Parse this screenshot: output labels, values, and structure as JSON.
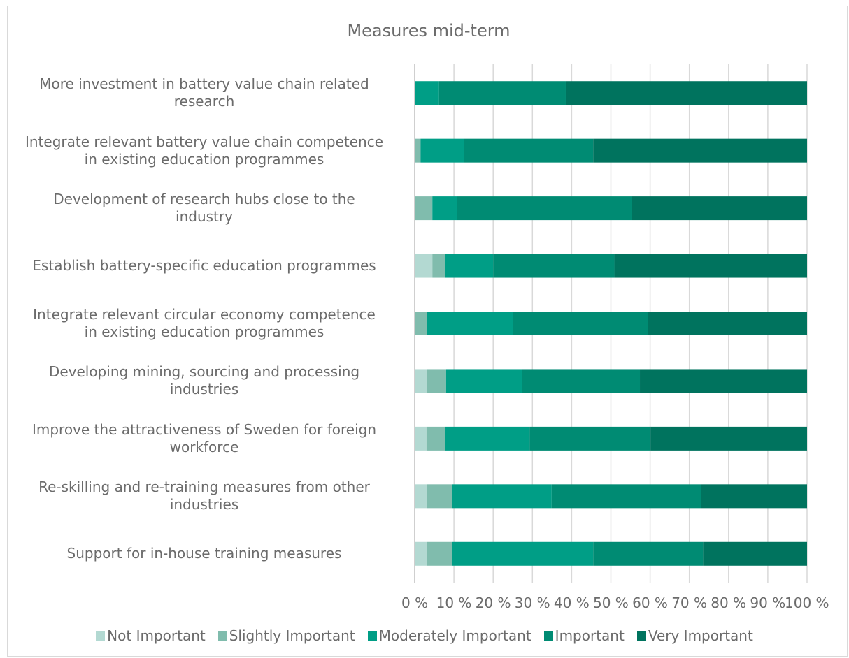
{
  "chart_data": {
    "type": "bar",
    "orientation": "horizontal",
    "stacked": true,
    "percent_stacked": true,
    "title": "Measures mid-term",
    "categories": [
      "More investment in battery value chain related research",
      "Integrate relevant battery value chain competence in existing education programmes",
      "Development of research hubs close to the industry",
      "Establish battery-specific education programmes",
      "Integrate relevant circular economy competence in existing education programmes",
      "Developing mining, sourcing and processing industries",
      "Improve the attractiveness of Sweden for foreign workforce",
      "Re-skilling and re-training measures from other industries",
      "Support for in-house training measures"
    ],
    "series": [
      {
        "name": "Not Important",
        "color": "#b3d9d2",
        "values": [
          0,
          0,
          0,
          4.5,
          0,
          3.2,
          3,
          3.2,
          3.2
        ]
      },
      {
        "name": "Slightly Important",
        "color": "#80bcad",
        "values": [
          0,
          1.5,
          4.5,
          3.2,
          3.2,
          4.8,
          4.7,
          6.3,
          6.3
        ]
      },
      {
        "name": "Moderately Important",
        "color": "#009e86",
        "values": [
          6.2,
          11,
          6.3,
          12.3,
          21.8,
          19.3,
          21.6,
          25.4,
          36
        ]
      },
      {
        "name": "Important",
        "color": "#008b73",
        "values": [
          32.3,
          33,
          44.5,
          30.9,
          34.4,
          30.1,
          30.8,
          38.1,
          28
        ]
      },
      {
        "name": "Very Important",
        "color": "#00735e",
        "values": [
          61.5,
          54.5,
          44.7,
          49.1,
          40.6,
          42.6,
          39.9,
          27,
          26.5
        ]
      }
    ],
    "xlim": [
      0,
      100
    ],
    "ticks": [
      "0 %",
      "10 %",
      "20 %",
      "30 %",
      "40 %",
      "50 %",
      "60 %",
      "70 %",
      "80 %",
      "90 %",
      "100 %"
    ],
    "grid": true,
    "legend_position": "bottom"
  },
  "label_lines": [
    [
      "More investment in battery value chain related",
      "research"
    ],
    [
      "Integrate relevant battery value chain competence",
      "in existing education programmes"
    ],
    [
      "Development of research hubs close to the",
      "industry"
    ],
    [
      "Establish battery-specific education programmes"
    ],
    [
      "Integrate relevant circular economy competence",
      "in existing education programmes"
    ],
    [
      "Developing mining, sourcing and processing",
      "industries"
    ],
    [
      "Improve the attractiveness of Sweden for foreign",
      "workforce"
    ],
    [
      "Re-skilling and re-training measures from other",
      "industries"
    ],
    [
      "Support for in-house training measures"
    ]
  ]
}
